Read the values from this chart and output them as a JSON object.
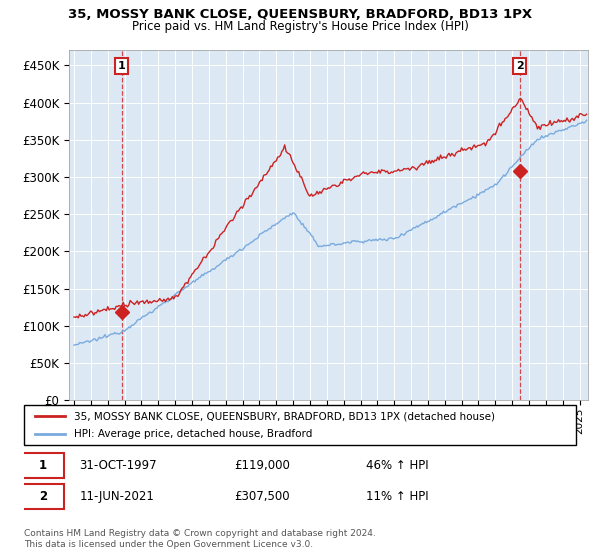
{
  "title": "35, MOSSY BANK CLOSE, QUEENSBURY, BRADFORD, BD13 1PX",
  "subtitle": "Price paid vs. HM Land Registry's House Price Index (HPI)",
  "hpi_label": "HPI: Average price, detached house, Bradford",
  "property_label": "35, MOSSY BANK CLOSE, QUEENSBURY, BRADFORD, BD13 1PX (detached house)",
  "sale1_date": "31-OCT-1997",
  "sale1_price": "£119,000",
  "sale1_hpi": "46% ↑ HPI",
  "sale2_date": "11-JUN-2021",
  "sale2_price": "£307,500",
  "sale2_hpi": "11% ↑ HPI",
  "footer": "Contains HM Land Registry data © Crown copyright and database right 2024.\nThis data is licensed under the Open Government Licence v3.0.",
  "hpi_color": "#7aaadd",
  "property_color": "#cc2222",
  "background_color": "#ffffff",
  "plot_bg_color": "#dce9f5",
  "grid_color": "#ffffff",
  "ylim": [
    0,
    470000
  ],
  "yticks": [
    0,
    50000,
    100000,
    150000,
    200000,
    250000,
    300000,
    350000,
    400000,
    450000
  ],
  "xlim_start": 1994.7,
  "xlim_end": 2025.5,
  "sale1_x": 1997.83,
  "sale1_y": 119000,
  "sale2_x": 2021.44,
  "sale2_y": 307500
}
